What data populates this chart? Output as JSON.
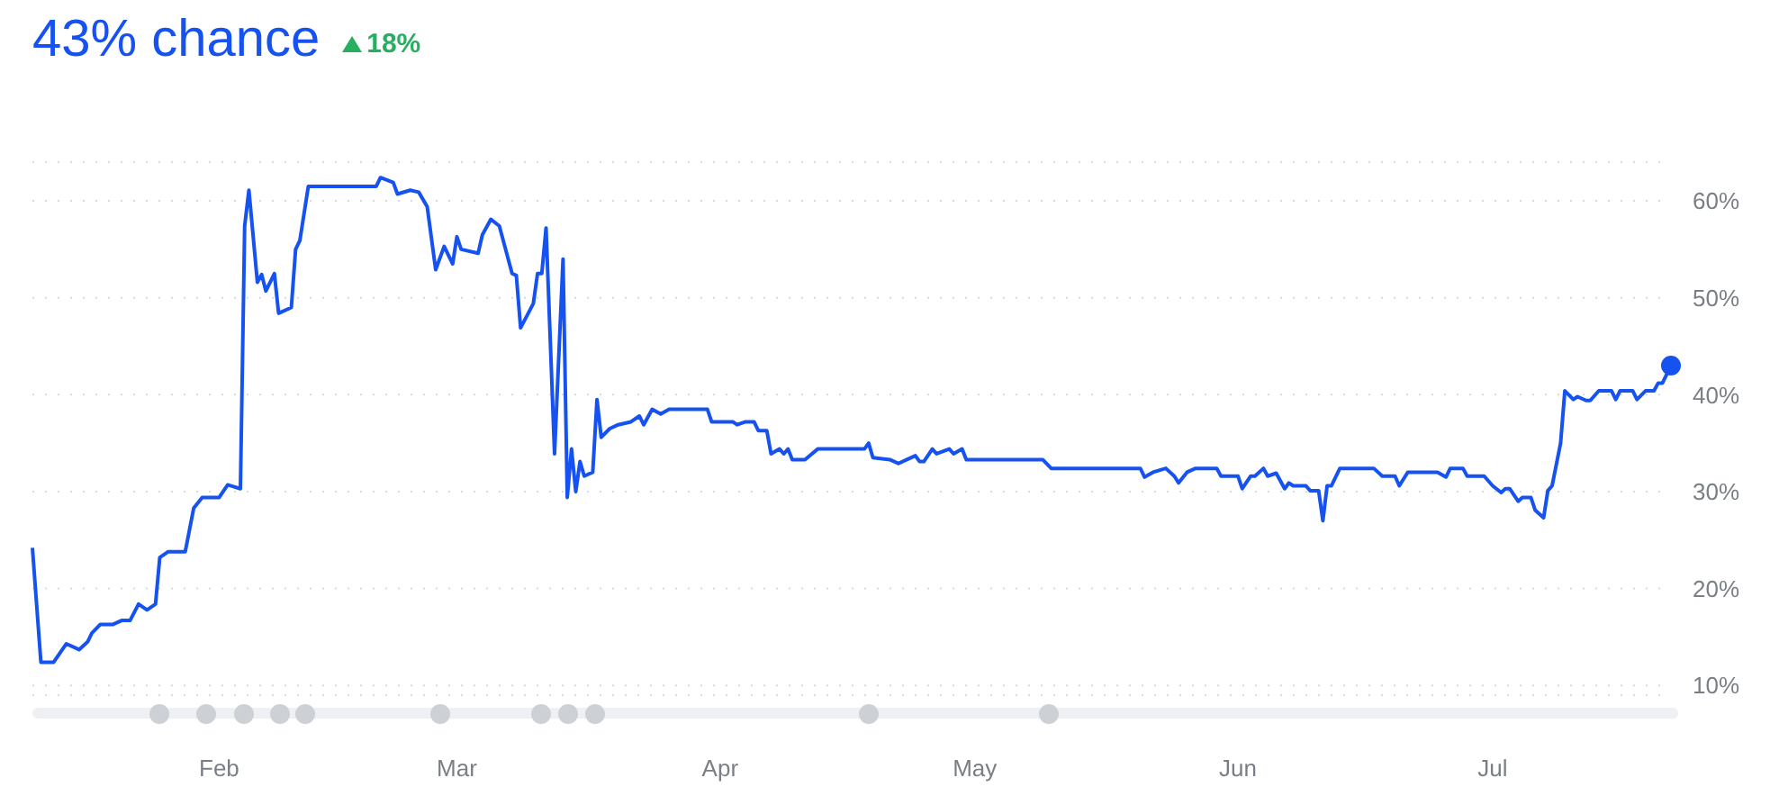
{
  "chart_data": {
    "type": "line",
    "title": "43% chance",
    "subtitle": "18%",
    "x": [
      "--01-10",
      "--01-11",
      "--01-12T12:00",
      "--01-14",
      "--01-15T12:00",
      "--01-16T12:00",
      "--01-17",
      "--01-18",
      "--01-19T12:00",
      "--01-20T12:00",
      "--01-21T12:00",
      "--01-22T12:00",
      "--01-23T12:00",
      "--01-24T12:00",
      "--01-25",
      "--01-26",
      "--01-28",
      "--01-29",
      "--01-30",
      "--02-01",
      "--02-02",
      "--02-03T12:00",
      "--02-04",
      "--02-04T12:00",
      "--02-05T12:00",
      "--02-06",
      "--02-06T12:00",
      "--02-07T12:00",
      "--02-08",
      "--02-09T12:00",
      "--02-10",
      "--02-10T12:00",
      "--02-11T12:00",
      "--02-13",
      "--02-19T12:00",
      "--02-20",
      "--02-21T12:00",
      "--02-22",
      "--02-23T12:00",
      "--02-24T12:00",
      "--02-25T12:00",
      "--02-26T12:00",
      "--02-27T12:00",
      "--02-28T12:00",
      "--03-01",
      "--03-01T12:00",
      "--03-03T12:00",
      "--03-04",
      "--03-05",
      "--03-06",
      "--03-07T12:00",
      "--03-08",
      "--03-08T12:00",
      "--03-10",
      "--03-10T12:00",
      "--03-11",
      "--03-11T12:00",
      "--03-12T12:00",
      "--03-13T12:00",
      "--03-14",
      "--03-14T12:00",
      "--03-15",
      "--03-15T12:00",
      "--03-16",
      "--03-17",
      "--03-17T12:00",
      "--03-18",
      "--03-19",
      "--03-20",
      "--03-21T12:00",
      "--03-22T12:00",
      "--03-23",
      "--03-24",
      "--03-25",
      "--03-26",
      "--03-30T12:00",
      "--03-31",
      "--04-02T12:00",
      "--04-03",
      "--04-04",
      "--04-05",
      "--04-05T12:00",
      "--04-06T12:00",
      "--04-07",
      "--04-08",
      "--04-08T12:00",
      "--04-09",
      "--04-09T12:00",
      "--04-11",
      "--04-12T12:00",
      "--04-18",
      "--04-18T12:00",
      "--04-19",
      "--04-21",
      "--04-22",
      "--04-23",
      "--04-24",
      "--04-24T12:00",
      "--04-25",
      "--04-26",
      "--04-26T12:00",
      "--04-28",
      "--04-28T12:00",
      "--04-29T12:00",
      "--04-30",
      "--05-09",
      "--05-10",
      "--05-20T12:00",
      "--05-21",
      "--05-22",
      "--05-23T12:00",
      "--05-24T12:00",
      "--05-25",
      "--05-26",
      "--05-27",
      "--05-29T12:00",
      "--05-30",
      "--06-01",
      "--06-01T12:00",
      "--06-02T12:00",
      "--06-03",
      "--06-04",
      "--06-04T12:00",
      "--06-05T12:00",
      "--06-06T12:00",
      "--06-07",
      "--06-07T12:00",
      "--06-09",
      "--06-09T12:00",
      "--06-10T12:00",
      "--06-11",
      "--06-11T12:00",
      "--06-12",
      "--06-13",
      "--06-17",
      "--06-18",
      "--06-19T12:00",
      "--06-20",
      "--06-21",
      "--06-24T12:00",
      "--06-25T12:00",
      "--06-26",
      "--06-27T12:00",
      "--06-28",
      "--06-30",
      "--07-01",
      "--07-02",
      "--07-02T12:00",
      "--07-03",
      "--07-04",
      "--07-04T12:00",
      "--07-05T12:00",
      "--07-06",
      "--07-07",
      "--07-07T12:00",
      "--07-08",
      "--07-09",
      "--07-09T12:00",
      "--07-10T12:00",
      "--07-11",
      "--07-12",
      "--07-12T12:00",
      "--07-13T12:00",
      "--07-15",
      "--07-15T12:00",
      "--07-16",
      "--07-17T12:00",
      "--07-18",
      "--07-19",
      "--07-20",
      "--07-20T12:00",
      "--07-21",
      "--07-22"
    ],
    "series": [
      {
        "color": "#1652f0",
        "values": [
          24.2,
          12.4,
          12.4,
          14.3,
          13.7,
          14.5,
          15.4,
          16.3,
          16.3,
          16.7,
          16.7,
          18.4,
          17.8,
          18.4,
          23.2,
          23.8,
          23.8,
          28.3,
          29.4,
          29.4,
          30.7,
          30.3,
          57.4,
          61.1,
          51.6,
          52.4,
          50.7,
          52.5,
          48.4,
          49.0,
          55.0,
          55.9,
          61.5,
          61.5,
          61.5,
          62.4,
          61.9,
          60.7,
          61.1,
          60.9,
          59.4,
          52.9,
          55.3,
          53.5,
          56.3,
          55.0,
          54.6,
          56.5,
          58.1,
          57.4,
          52.5,
          52.3,
          46.9,
          49.4,
          52.5,
          52.5,
          57.2,
          33.9,
          54.0,
          29.4,
          34.4,
          30.0,
          33.1,
          31.6,
          32.0,
          39.5,
          35.6,
          36.5,
          36.9,
          37.2,
          37.8,
          36.9,
          38.5,
          38.0,
          38.5,
          38.5,
          37.2,
          37.2,
          36.9,
          37.2,
          37.2,
          36.3,
          36.3,
          33.9,
          34.4,
          33.9,
          34.4,
          33.3,
          33.3,
          34.4,
          34.4,
          35.0,
          33.5,
          33.3,
          32.9,
          33.3,
          33.7,
          33.1,
          33.1,
          34.4,
          33.9,
          34.4,
          33.9,
          34.4,
          33.3,
          33.3,
          32.4,
          32.4,
          31.5,
          32.0,
          32.4,
          31.6,
          30.9,
          32.0,
          32.4,
          32.4,
          31.6,
          31.6,
          30.3,
          31.6,
          31.6,
          32.4,
          31.6,
          31.9,
          30.3,
          30.9,
          30.6,
          30.6,
          30.1,
          30.1,
          27.0,
          30.6,
          30.6,
          32.4,
          32.4,
          31.6,
          31.6,
          30.6,
          32.0,
          32.0,
          31.5,
          32.4,
          32.4,
          31.6,
          31.6,
          30.6,
          29.9,
          30.3,
          30.3,
          29.0,
          29.4,
          29.4,
          28.1,
          27.3,
          30.1,
          30.6,
          35.0,
          40.4,
          39.5,
          39.8,
          39.4,
          39.4,
          40.4,
          40.4,
          39.5,
          40.4,
          40.4,
          39.5,
          40.4,
          40.4,
          41.2,
          41.2,
          43
        ]
      }
    ],
    "xlim": [
      "--01-10",
      "--07-22"
    ],
    "xticks": [
      {
        "value": "--02-01",
        "label": "Feb"
      },
      {
        "value": "--03-01",
        "label": "Mar"
      },
      {
        "value": "--04-01",
        "label": "Apr"
      },
      {
        "value": "--05-01",
        "label": "May"
      },
      {
        "value": "--06-01",
        "label": "Jun"
      },
      {
        "value": "--07-01",
        "label": "Jul"
      }
    ],
    "ylim": [
      9,
      64
    ],
    "yticks": [
      {
        "value": 10,
        "label": "10%"
      },
      {
        "value": 20,
        "label": "20%"
      },
      {
        "value": 30,
        "label": "30%"
      },
      {
        "value": 40,
        "label": "40%"
      },
      {
        "value": 50,
        "label": "50%"
      },
      {
        "value": 60,
        "label": "60%"
      }
    ],
    "grid": "y",
    "line_style": "solid"
  }
}
